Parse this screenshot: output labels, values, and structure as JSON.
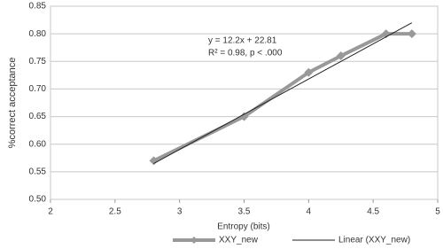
{
  "chart_data": {
    "type": "line",
    "x_label": "Entropy (bits)",
    "y_label": "%correct  acceptance",
    "annotations": [
      "y = 12.2x + 22.81",
      "R² = 0.98, p < .000"
    ],
    "series": [
      {
        "name": "XXY_new",
        "color": "#999999",
        "marker": "diamond",
        "x": [
          2.8,
          3.5,
          4.0,
          4.25,
          4.6,
          4.8
        ],
        "values": [
          0.57,
          0.65,
          0.73,
          0.76,
          0.8,
          0.8
        ]
      },
      {
        "name": "Linear (XXY_new)",
        "color": "#222222",
        "x": [
          2.8,
          4.8
        ],
        "values": [
          0.565,
          0.82
        ]
      }
    ],
    "xlim": [
      2,
      5
    ],
    "xticks": [
      2,
      2.5,
      3,
      3.5,
      4,
      4.5,
      5
    ],
    "ylim": [
      0.5,
      0.85
    ],
    "yticks": [
      {
        "value": 0.5,
        "label": "0.50"
      },
      {
        "value": 0.55,
        "label": "0.55"
      },
      {
        "value": 0.6,
        "label": "0.60"
      },
      {
        "value": 0.65,
        "label": "0.65"
      },
      {
        "value": 0.7,
        "label": "0.70"
      },
      {
        "value": 0.75,
        "label": "0.75"
      },
      {
        "value": 0.8,
        "label": "0.80"
      },
      {
        "value": 0.85,
        "label": "0.85"
      }
    ],
    "grid": true
  }
}
